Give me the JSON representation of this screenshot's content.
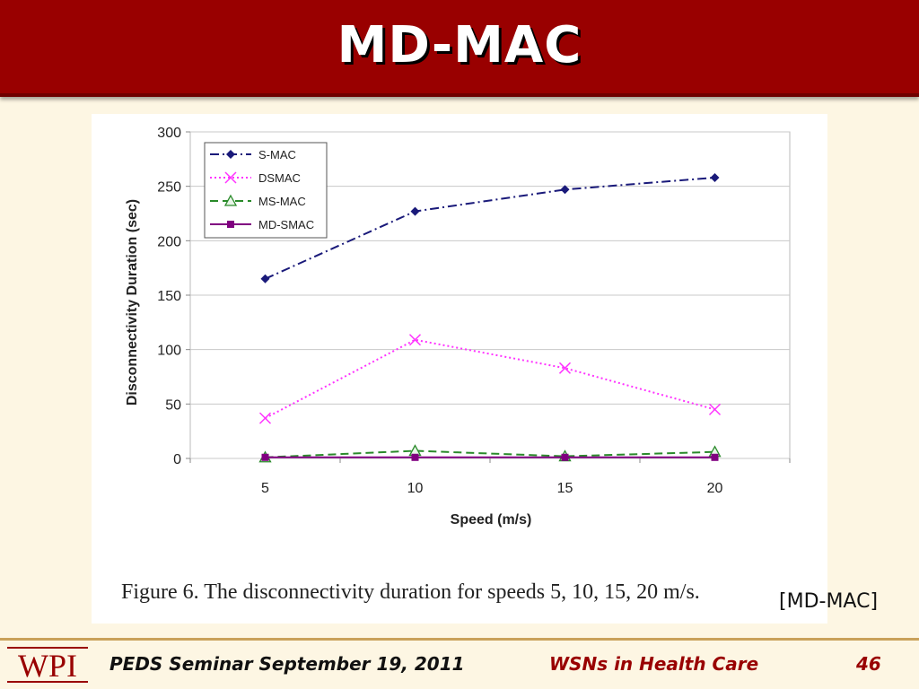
{
  "slide": {
    "title": "MD-MAC",
    "caption": "Figure 6.    The disconnectivity duration for speeds 5, 10, 15, 20 m/s.",
    "citation": "[MD-MAC]"
  },
  "footer": {
    "logo_text": "WPI",
    "left_text": "PEDS Seminar September 19, 2011",
    "center_text": "WSNs in Health Care",
    "page_number": "46"
  },
  "colors": {
    "title_bar": "#990000",
    "s_mac": "#1a1a7a",
    "dsmac": "#ff33ff",
    "ms_mac": "#2a8a2a",
    "md_smac": "#800080"
  },
  "chart_data": {
    "type": "line",
    "xlabel": "Speed (m/s)",
    "ylabel": "Disconnectivity Duration (sec)",
    "categories": [
      "5",
      "10",
      "15",
      "20"
    ],
    "ylim": [
      0,
      300
    ],
    "yticks": [
      0,
      50,
      100,
      150,
      200,
      250,
      300
    ],
    "grid": true,
    "legend_position": "top-left",
    "series": [
      {
        "name": "S-MAC",
        "values": [
          165,
          227,
          247,
          258
        ],
        "color": "#1a1a7a",
        "marker": "diamond",
        "dash": "dash-dot"
      },
      {
        "name": "DSMAC",
        "values": [
          37,
          109,
          83,
          45
        ],
        "color": "#ff33ff",
        "marker": "x",
        "dash": "dotted"
      },
      {
        "name": "MS-MAC",
        "values": [
          1,
          7,
          2,
          6
        ],
        "color": "#2a8a2a",
        "marker": "triangle",
        "dash": "dashed"
      },
      {
        "name": "MD-SMAC",
        "values": [
          1,
          1,
          1,
          1
        ],
        "color": "#800080",
        "marker": "square",
        "dash": "solid"
      }
    ]
  }
}
